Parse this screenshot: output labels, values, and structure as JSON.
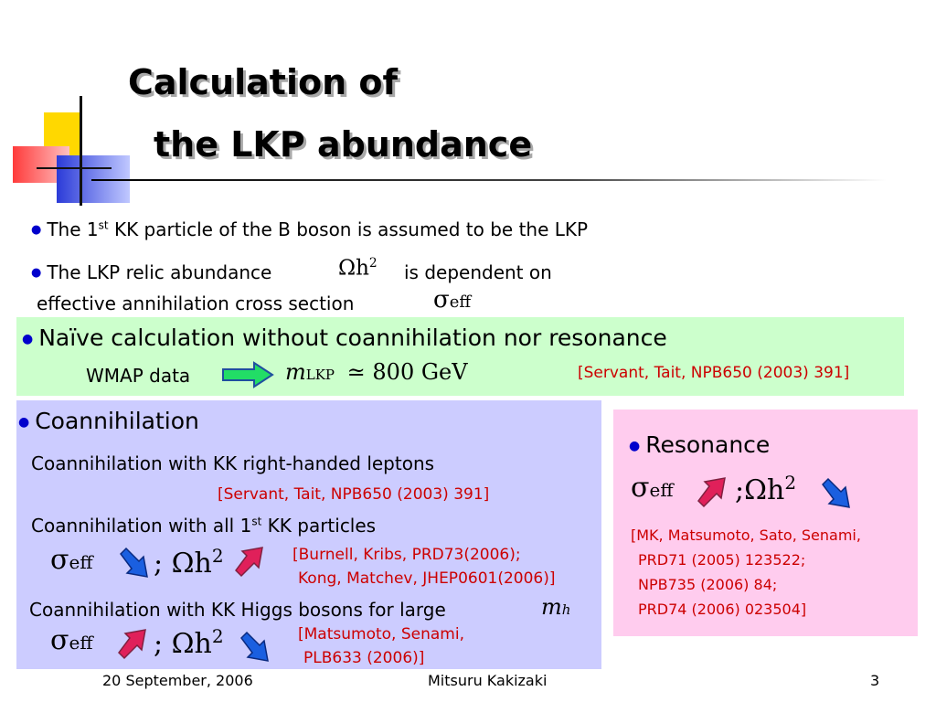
{
  "title": {
    "line1": "Calculation of",
    "line2": "the LKP abundance"
  },
  "intro": {
    "bullet1_pre": "The 1",
    "bullet1_sup": "st",
    "bullet1_post": " KK particle of the B boson is assumed to be the LKP",
    "bullet2_pre": "The LKP relic abundance",
    "bullet2_math": "Ωh",
    "bullet2_math_sup": "2",
    "bullet2_post": "is dependent on",
    "bullet2_line2": "effective annihilation cross section",
    "bullet2_line2_math": "σ",
    "bullet2_line2_math_sub": "eff"
  },
  "naive": {
    "heading": "Naïve calculation without coannihilation nor resonance",
    "wmap_label": "WMAP data",
    "math_m": "m",
    "math_sub": "LKP",
    "math_rel": "≃ 800 GeV",
    "ref": "[Servant, Tait, NPB650 (2003) 391]"
  },
  "coann": {
    "heading": "Coannihilation",
    "item1": "Coannihilation with KK right-handed leptons",
    "item1_ref": "[Servant, Tait, NPB650 (2003) 391]",
    "item2_pre": "Coannihilation with all 1",
    "item2_sup": "st",
    "item2_post": " KK particles",
    "item2_ref_line1": "[Burnell, Kribs, PRD73(2006);",
    "item2_ref_line2": "Kong, Matchev, JHEP0601(2006)]",
    "item3": "Coannihilation with KK Higgs bosons for large",
    "item3_math": "m",
    "item3_math_sub": "h",
    "item3_ref_line1": "[Matsumoto, Senami,",
    "item3_ref_line2": "PLB633 (2006)]",
    "sigma": "σ",
    "sigma_sub": "eff",
    "semicolon": ";",
    "omega": "Ωh",
    "omega_sup": "2"
  },
  "resonance": {
    "heading": "Resonance",
    "sigma": "σ",
    "sigma_sub": "eff",
    "semicolon": ";",
    "omega": "Ωh",
    "omega_sup": "2",
    "ref_line1": "[MK, Matsumoto, Sato, Senami,",
    "ref_line2": "PRD71 (2005) 123522;",
    "ref_line3": "NPB735 (2006) 84;",
    "ref_line4": "PRD74 (2006) 023504]"
  },
  "footer": {
    "date": "20 September, 2006",
    "author": "Mitsuru Kakizaki",
    "page": "3"
  },
  "colors": {
    "bullet": "#0000cc",
    "reference": "#cc0000",
    "arrow_down": "#1a5fe0",
    "arrow_up": "#e0205a",
    "arrow_green": "#22dd66"
  }
}
